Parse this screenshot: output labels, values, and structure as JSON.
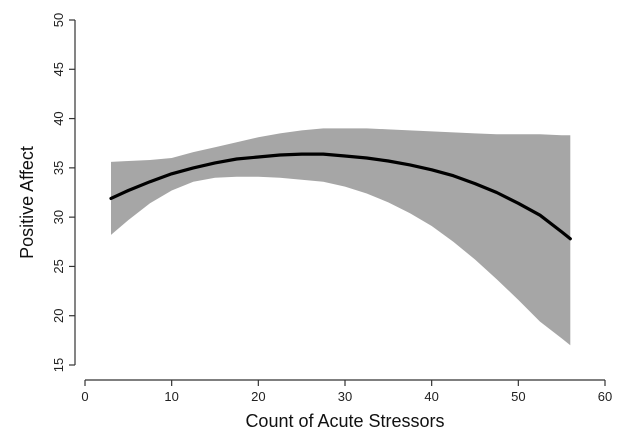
{
  "chart_data": {
    "type": "area",
    "title": "",
    "xlabel": "Count of Acute Stressors",
    "ylabel": "Positive Affect",
    "xlim": [
      0,
      60
    ],
    "ylim": [
      15,
      50
    ],
    "x_ticks": [
      0,
      10,
      20,
      30,
      40,
      50,
      60
    ],
    "y_ticks": [
      15,
      20,
      25,
      30,
      35,
      40,
      45,
      50
    ],
    "grid": false,
    "legend": "none",
    "colors": {
      "fit_line": "#000000",
      "confidence_band": "#a6a6a6",
      "axis": "#333333"
    },
    "series": [
      {
        "kind": "line",
        "x": [
          3,
          5,
          7.5,
          10,
          12.5,
          15,
          17.5,
          20,
          22.5,
          25,
          27.5,
          30,
          32.5,
          35,
          37.5,
          40,
          42.5,
          45,
          47.5,
          50,
          52.5,
          55,
          56
        ],
        "y": [
          31.9,
          32.7,
          33.6,
          34.4,
          35.0,
          35.5,
          35.9,
          36.1,
          36.3,
          36.4,
          36.4,
          36.2,
          36.0,
          35.7,
          35.3,
          34.8,
          34.2,
          33.4,
          32.5,
          31.4,
          30.2,
          28.5,
          27.8
        ]
      },
      {
        "kind": "band",
        "x": [
          3,
          5,
          7.5,
          10,
          12.5,
          15,
          17.5,
          20,
          22.5,
          25,
          27.5,
          30,
          32.5,
          35,
          37.5,
          40,
          42.5,
          45,
          47.5,
          50,
          52.5,
          55,
          56
        ],
        "y_upper": [
          35.6,
          35.7,
          35.8,
          36.0,
          36.6,
          37.1,
          37.6,
          38.1,
          38.5,
          38.8,
          39.0,
          39.0,
          39.0,
          38.9,
          38.8,
          38.7,
          38.6,
          38.5,
          38.4,
          38.4,
          38.4,
          38.3,
          38.3
        ],
        "y_lower": [
          28.2,
          29.7,
          31.4,
          32.7,
          33.6,
          34.0,
          34.1,
          34.1,
          34.0,
          33.8,
          33.6,
          33.1,
          32.4,
          31.5,
          30.4,
          29.1,
          27.5,
          25.7,
          23.7,
          21.6,
          19.4,
          17.7,
          17.0
        ]
      }
    ]
  }
}
